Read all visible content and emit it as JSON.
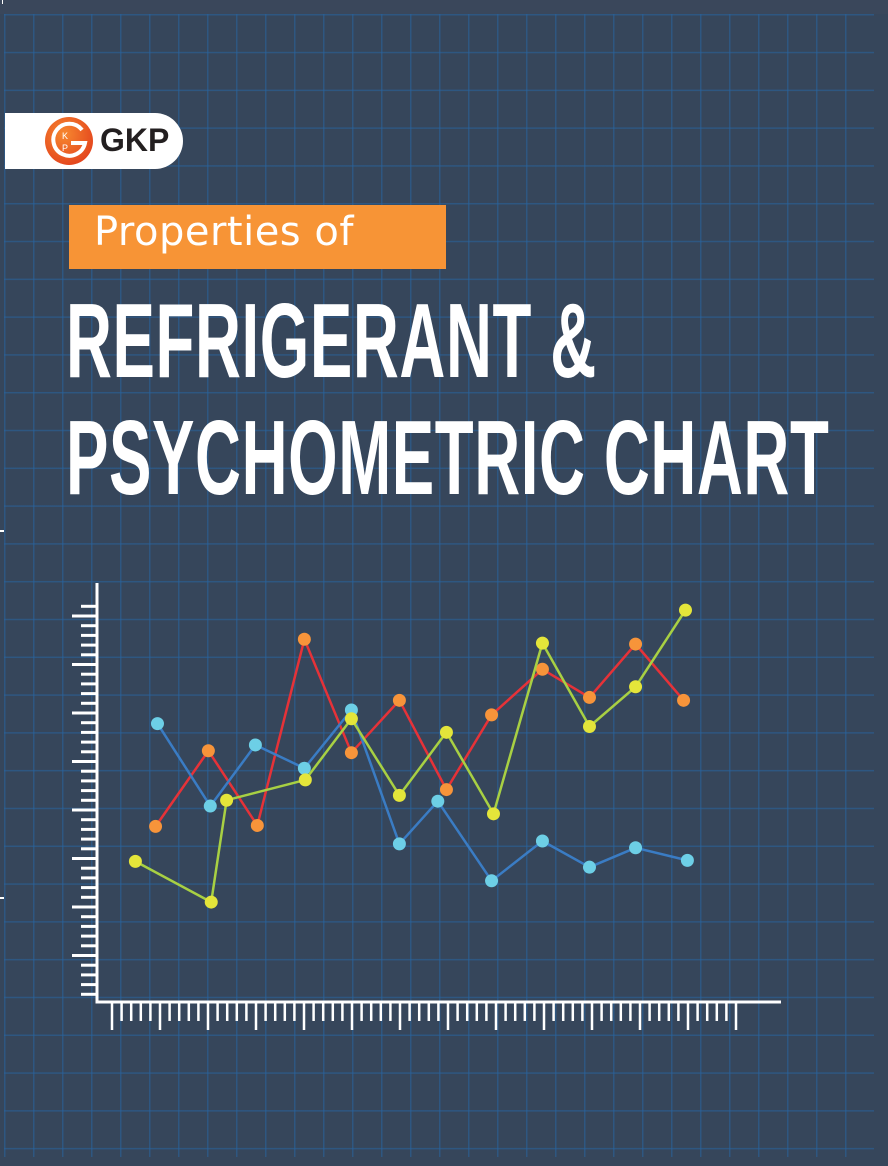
{
  "brand": {
    "name": "GKP",
    "logo_letters": [
      "G",
      "K",
      "P"
    ],
    "logo_color": "#f26522"
  },
  "subtitle": "Properties of",
  "title": {
    "line1": "REFRIGERANT &",
    "line2": "PSYCHOMETRIC CHART"
  },
  "colors": {
    "background": "#36465b",
    "grid": "#2e5a85",
    "subtitle_box": "#f79436",
    "axis": "#ffffff"
  },
  "chart_data": {
    "type": "line",
    "title": "",
    "xlabel": "",
    "ylabel": "",
    "tick_labels_shown": false,
    "grid": false,
    "xlim": [
      0,
      71
    ],
    "ylim": [
      0,
      43
    ],
    "x_ticks": {
      "minor_step": 1,
      "major_every": 5
    },
    "y_ticks": {
      "minor_step": 1,
      "major_every": 5
    },
    "series": [
      {
        "name": "orange",
        "line_color": "#e63238",
        "marker_color": "#f7943a",
        "x": [
          6.1,
          11.6,
          16.7,
          21.6,
          26.5,
          31.5,
          36.4,
          41.1,
          46.4,
          51.3,
          56.1,
          61.1
        ],
        "values": [
          18.1,
          25.9,
          18.2,
          37.4,
          25.7,
          31.1,
          21.9,
          29.6,
          34.3,
          31.4,
          36.9,
          31.1
        ]
      },
      {
        "name": "cyan",
        "line_color": "#3a7cc4",
        "marker_color": "#6dcfe6",
        "x": [
          6.3,
          11.8,
          16.5,
          21.6,
          26.5,
          31.5,
          35.5,
          41.1,
          46.4,
          51.3,
          56.1,
          61.5
        ],
        "values": [
          28.7,
          20.2,
          26.5,
          24.1,
          30.1,
          16.3,
          20.7,
          12.5,
          16.6,
          13.9,
          15.9,
          14.6
        ]
      },
      {
        "name": "yellow",
        "line_color": "#a8d043",
        "marker_color": "#e4e53a",
        "x": [
          4.0,
          11.9,
          13.5,
          21.7,
          26.5,
          31.5,
          36.4,
          41.3,
          46.4,
          51.3,
          56.1,
          61.3
        ],
        "values": [
          14.5,
          10.3,
          20.8,
          22.9,
          29.2,
          21.3,
          27.8,
          19.4,
          37.0,
          28.4,
          32.5,
          40.4
        ]
      }
    ]
  }
}
